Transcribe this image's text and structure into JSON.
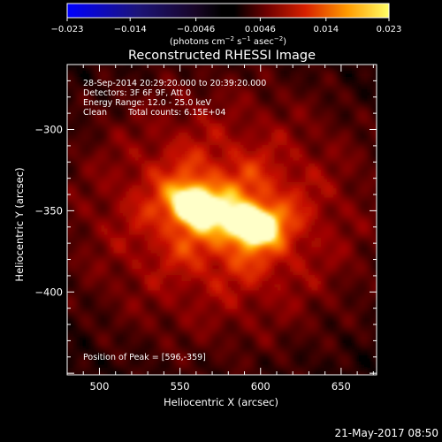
{
  "chart_data": {
    "type": "heatmap",
    "title": "Reconstructed RHESSI Image",
    "xlabel": "Heliocentric X (arcsec)",
    "ylabel": "Heliocentric Y (arcsec)",
    "xlim": [
      480,
      672
    ],
    "ylim": [
      -451,
      -260
    ],
    "x_ticks": [
      500,
      550,
      600,
      650
    ],
    "y_ticks": [
      -300,
      -350,
      -400
    ],
    "colorbar": {
      "range": [
        -0.023,
        0.023
      ],
      "ticks": [
        {
          "value": -0.023,
          "label": "−0.023"
        },
        {
          "value": -0.014,
          "label": "−0.014"
        },
        {
          "value": -0.0046,
          "label": "−0.0046"
        },
        {
          "value": 0.0046,
          "label": "0.0046"
        },
        {
          "value": 0.014,
          "label": "0.014"
        },
        {
          "value": 0.023,
          "label": "0.023"
        }
      ],
      "label_main": "(photons cm",
      "label_sup1": "−2",
      "label_mid1": " s",
      "label_sup2": "−1",
      "label_mid2": " asec",
      "label_sup3": "−2",
      "label_end": ")"
    },
    "sources": [
      {
        "x": 557,
        "y": -346,
        "peak": 0.021
      },
      {
        "x": 596,
        "y": -359,
        "peak": 0.023
      }
    ],
    "annotations": {
      "time_range": "28-Sep-2014 20:29:20.000 to 20:39:20.000",
      "detectors": "Detectors: 3F 6F 9F, Att 0",
      "energy": "Energy Range: 12.0 - 25.0 keV",
      "method": "Clean",
      "counts": "Total counts: 6.15E+04",
      "peak": "Position of Peak = [596,-359]"
    },
    "footer_date": "21-May-2017 08:50",
    "colors": {
      "background": "#000000",
      "text": "#ffffff"
    }
  }
}
